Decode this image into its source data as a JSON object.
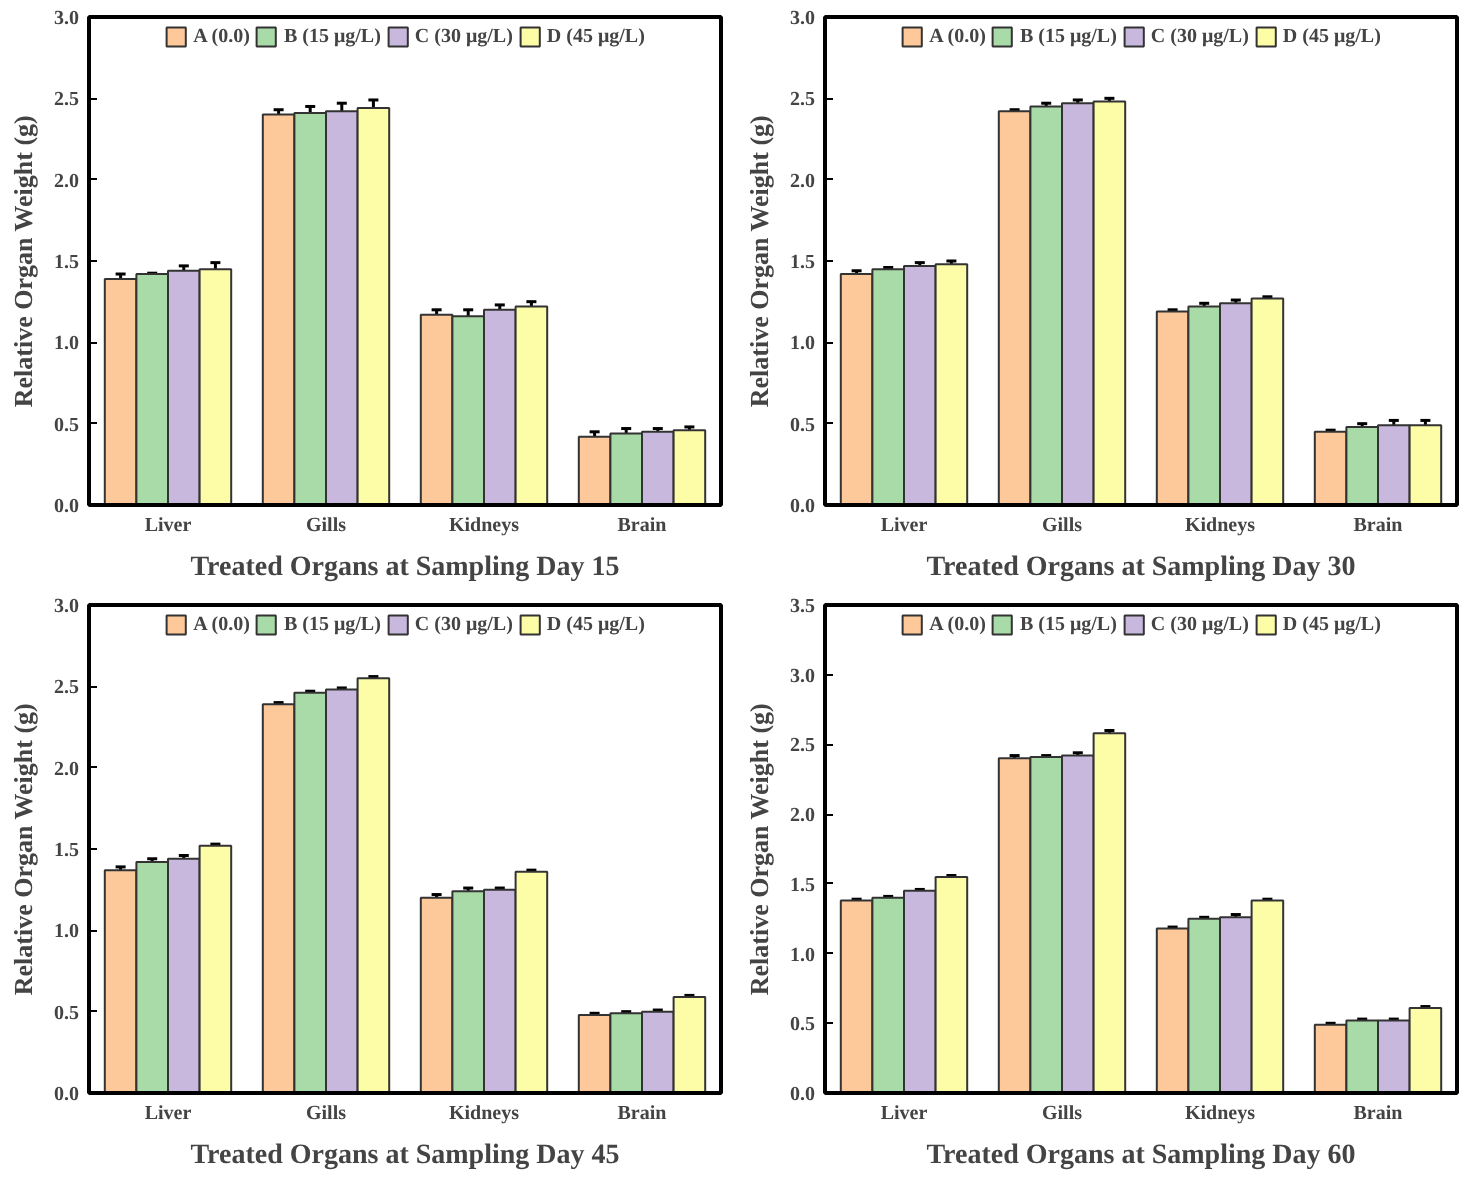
{
  "chart_data": [
    {
      "type": "bar",
      "xlabel": "Treated Organs at Sampling Day 15",
      "ylabel": "Relative Organ Weight (g)",
      "categories": [
        "Liver",
        "Gills",
        "Kidneys",
        "Brain"
      ],
      "ylim": [
        0,
        3.0
      ],
      "yticks": [
        {
          "value": 0,
          "label": "0.0"
        },
        0.5,
        {
          "value": 1,
          "label": "1.0"
        },
        1.5,
        {
          "value": 2,
          "label": "2.0"
        },
        2.5,
        {
          "value": 3,
          "label": "3.0"
        }
      ],
      "grid": false,
      "legend": "top",
      "series": [
        {
          "name": "A (0.0)",
          "color": "#fdc99a",
          "values": [
            1.39,
            2.4,
            1.17,
            0.42
          ],
          "errors": [
            0.03,
            0.03,
            0.03,
            0.03
          ]
        },
        {
          "name": "B (15 μg/L)",
          "color": "#a8dba8",
          "values": [
            1.42,
            2.41,
            1.16,
            0.44
          ],
          "errors": [
            0.005,
            0.04,
            0.04,
            0.03
          ]
        },
        {
          "name": "C (30 μg/L)",
          "color": "#c9b8de",
          "values": [
            1.44,
            2.42,
            1.2,
            0.45
          ],
          "errors": [
            0.03,
            0.05,
            0.03,
            0.02
          ]
        },
        {
          "name": "D (45 μg/L)",
          "color": "#fdfda8",
          "values": [
            1.45,
            2.44,
            1.22,
            0.46
          ],
          "errors": [
            0.04,
            0.05,
            0.03,
            0.02
          ]
        }
      ]
    },
    {
      "type": "bar",
      "xlabel": "Treated Organs at Sampling Day 30",
      "ylabel": "Relative Organ Weight (g)",
      "categories": [
        "Liver",
        "Gills",
        "Kidneys",
        "Brain"
      ],
      "ylim": [
        0,
        3.0
      ],
      "yticks": [
        {
          "value": 0,
          "label": "0.0"
        },
        0.5,
        {
          "value": 1,
          "label": "1.0"
        },
        1.5,
        {
          "value": 2,
          "label": "2.0"
        },
        2.5,
        {
          "value": 3,
          "label": "3.0"
        }
      ],
      "grid": false,
      "legend": "top",
      "series": [
        {
          "name": "A (0.0)",
          "color": "#fdc99a",
          "values": [
            1.42,
            2.42,
            1.19,
            0.45
          ],
          "errors": [
            0.02,
            0.01,
            0.01,
            0.01
          ]
        },
        {
          "name": "B (15 μg/L)",
          "color": "#a8dba8",
          "values": [
            1.45,
            2.45,
            1.22,
            0.48
          ],
          "errors": [
            0.01,
            0.02,
            0.02,
            0.02
          ]
        },
        {
          "name": "C (30 μg/L)",
          "color": "#c9b8de",
          "values": [
            1.47,
            2.47,
            1.24,
            0.49
          ],
          "errors": [
            0.02,
            0.02,
            0.02,
            0.03
          ]
        },
        {
          "name": "D (45 μg/L)",
          "color": "#fdfda8",
          "values": [
            1.48,
            2.48,
            1.27,
            0.49
          ],
          "errors": [
            0.02,
            0.02,
            0.01,
            0.03
          ]
        }
      ]
    },
    {
      "type": "bar",
      "xlabel": "Treated Organs at Sampling Day 45",
      "ylabel": "Relative Organ Weight (g)",
      "categories": [
        "Liver",
        "Gills",
        "Kidneys",
        "Brain"
      ],
      "ylim": [
        0,
        3.0
      ],
      "yticks": [
        {
          "value": 0,
          "label": "0.0"
        },
        0.5,
        {
          "value": 1,
          "label": "1.0"
        },
        1.5,
        {
          "value": 2,
          "label": "2.0"
        },
        2.5,
        {
          "value": 3,
          "label": "3.0"
        }
      ],
      "grid": false,
      "legend": "top",
      "series": [
        {
          "name": "A (0.0)",
          "color": "#fdc99a",
          "values": [
            1.37,
            2.39,
            1.2,
            0.48
          ],
          "errors": [
            0.02,
            0.01,
            0.02,
            0.01
          ]
        },
        {
          "name": "B (15 μg/L)",
          "color": "#a8dba8",
          "values": [
            1.42,
            2.46,
            1.24,
            0.49
          ],
          "errors": [
            0.02,
            0.01,
            0.02,
            0.01
          ]
        },
        {
          "name": "C (30 μg/L)",
          "color": "#c9b8de",
          "values": [
            1.44,
            2.48,
            1.25,
            0.5
          ],
          "errors": [
            0.02,
            0.01,
            0.01,
            0.01
          ]
        },
        {
          "name": "D (45 μg/L)",
          "color": "#fdfda8",
          "values": [
            1.52,
            2.55,
            1.36,
            0.59
          ],
          "errors": [
            0.01,
            0.01,
            0.01,
            0.01
          ]
        }
      ]
    },
    {
      "type": "bar",
      "xlabel": "Treated Organs at Sampling Day 60",
      "ylabel": "Relative Organ Weight (g)",
      "categories": [
        "Liver",
        "Gills",
        "Kidneys",
        "Brain"
      ],
      "ylim": [
        0,
        3.5
      ],
      "yticks": [
        {
          "value": 0,
          "label": "0.0"
        },
        0.5,
        {
          "value": 1,
          "label": "1.0"
        },
        1.5,
        {
          "value": 2,
          "label": "2.0"
        },
        2.5,
        {
          "value": 3,
          "label": "3.0"
        },
        3.5
      ],
      "grid": false,
      "legend": "top",
      "series": [
        {
          "name": "A (0.0)",
          "color": "#fdc99a",
          "values": [
            1.38,
            2.4,
            1.18,
            0.49
          ],
          "errors": [
            0.01,
            0.02,
            0.01,
            0.01
          ]
        },
        {
          "name": "B (15 μg/L)",
          "color": "#a8dba8",
          "values": [
            1.4,
            2.41,
            1.25,
            0.52
          ],
          "errors": [
            0.01,
            0.01,
            0.01,
            0.01
          ]
        },
        {
          "name": "C (30 μg/L)",
          "color": "#c9b8de",
          "values": [
            1.45,
            2.42,
            1.26,
            0.52
          ],
          "errors": [
            0.01,
            0.02,
            0.02,
            0.01
          ]
        },
        {
          "name": "D (45 μg/L)",
          "color": "#fdfda8",
          "values": [
            1.55,
            2.58,
            1.38,
            0.61
          ],
          "errors": [
            0.01,
            0.02,
            0.01,
            0.01
          ]
        }
      ]
    }
  ]
}
